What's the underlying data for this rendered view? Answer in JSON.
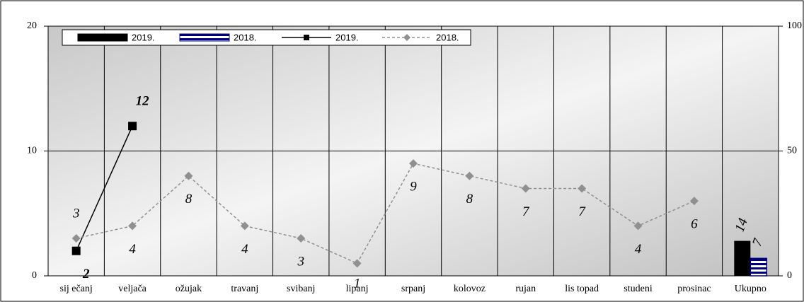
{
  "chart_data": {
    "type": "combo",
    "categories": [
      "sij ečanj",
      "veljača",
      "ožujak",
      "travanj",
      "svibanj",
      "lipanj",
      "srpanj",
      "kolovoz",
      "rujan",
      "lis topad",
      "studeni",
      "prosinac",
      "Ukupno"
    ],
    "series": [
      {
        "name": "2019.",
        "type": "bar",
        "axis": "y2",
        "color": "#000000",
        "values": [
          null,
          null,
          null,
          null,
          null,
          null,
          null,
          null,
          null,
          null,
          null,
          null,
          14
        ]
      },
      {
        "name": "2018.",
        "type": "bar",
        "axis": "y2",
        "color": "#000080",
        "values": [
          null,
          null,
          null,
          null,
          null,
          null,
          null,
          null,
          null,
          null,
          null,
          null,
          7
        ]
      },
      {
        "name": "2019.",
        "type": "line",
        "color": "#000000",
        "values": [
          2,
          12,
          null,
          null,
          null,
          null,
          null,
          null,
          null,
          null,
          null,
          null,
          null
        ]
      },
      {
        "name": "2018.",
        "type": "line",
        "color": "#909090",
        "values": [
          3,
          4,
          8,
          4,
          3,
          1,
          9,
          8,
          7,
          7,
          4,
          6,
          null
        ]
      }
    ],
    "ylim": [
      0,
      20
    ],
    "yticks": [
      0,
      10,
      20
    ],
    "y2lim": [
      0,
      100
    ],
    "y2ticks": [
      0,
      50,
      100
    ],
    "grid": true
  }
}
